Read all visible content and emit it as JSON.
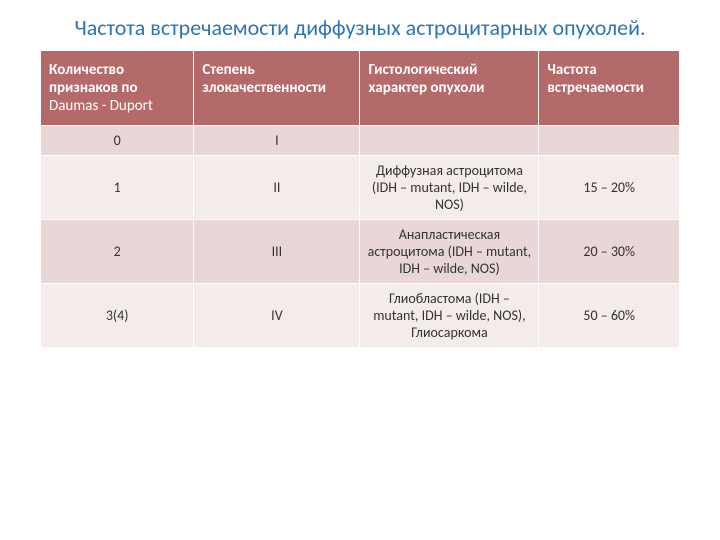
{
  "title": "Частота  встречаемости  диффузных астроцитарных опухолей.",
  "title_color": "#2e74b5",
  "title_fontsize": 22,
  "title_weight": 400,
  "table": {
    "header_bg": "#b56a6a",
    "header_text_color": "#ffffff",
    "header_fontsize": 15,
    "cell_fontsize": 14,
    "cell_text_color": "#333333",
    "row_colors": [
      "#e9d6d6",
      "#f4ebeb",
      "#e9d6d6",
      "#f4ebeb"
    ],
    "col_widths": [
      "24%",
      "26%",
      "28%",
      "22%"
    ],
    "columns": [
      {
        "main": "Количество признаков по",
        "sub": "Daumas - Duport"
      },
      {
        "main": "Степень злокачественности",
        "sub": ""
      },
      {
        "main": "Гистологический характер опухоли",
        "sub": ""
      },
      {
        "main": "Частота встречаемости",
        "sub": ""
      }
    ],
    "rows": [
      {
        "c0": "0",
        "c1": "I",
        "c2": "",
        "c3": ""
      },
      {
        "c0": "1",
        "c1": "II",
        "c2": "Диффузная астроцитома (IDH – mutant, IDH – wilde, NOS)",
        "c3": "15 – 20%"
      },
      {
        "c0": "2",
        "c1": "III",
        "c2": "Анапластическая астроцитома (IDH – mutant, IDH – wilde, NOS)",
        "c3": "20 – 30%"
      },
      {
        "c0": "3(4)",
        "c1": "IV",
        "c2": "Глиобластома (IDH – mutant, IDH – wilde, NOS), Глиосаркома",
        "c3": "50 – 60%"
      }
    ]
  }
}
